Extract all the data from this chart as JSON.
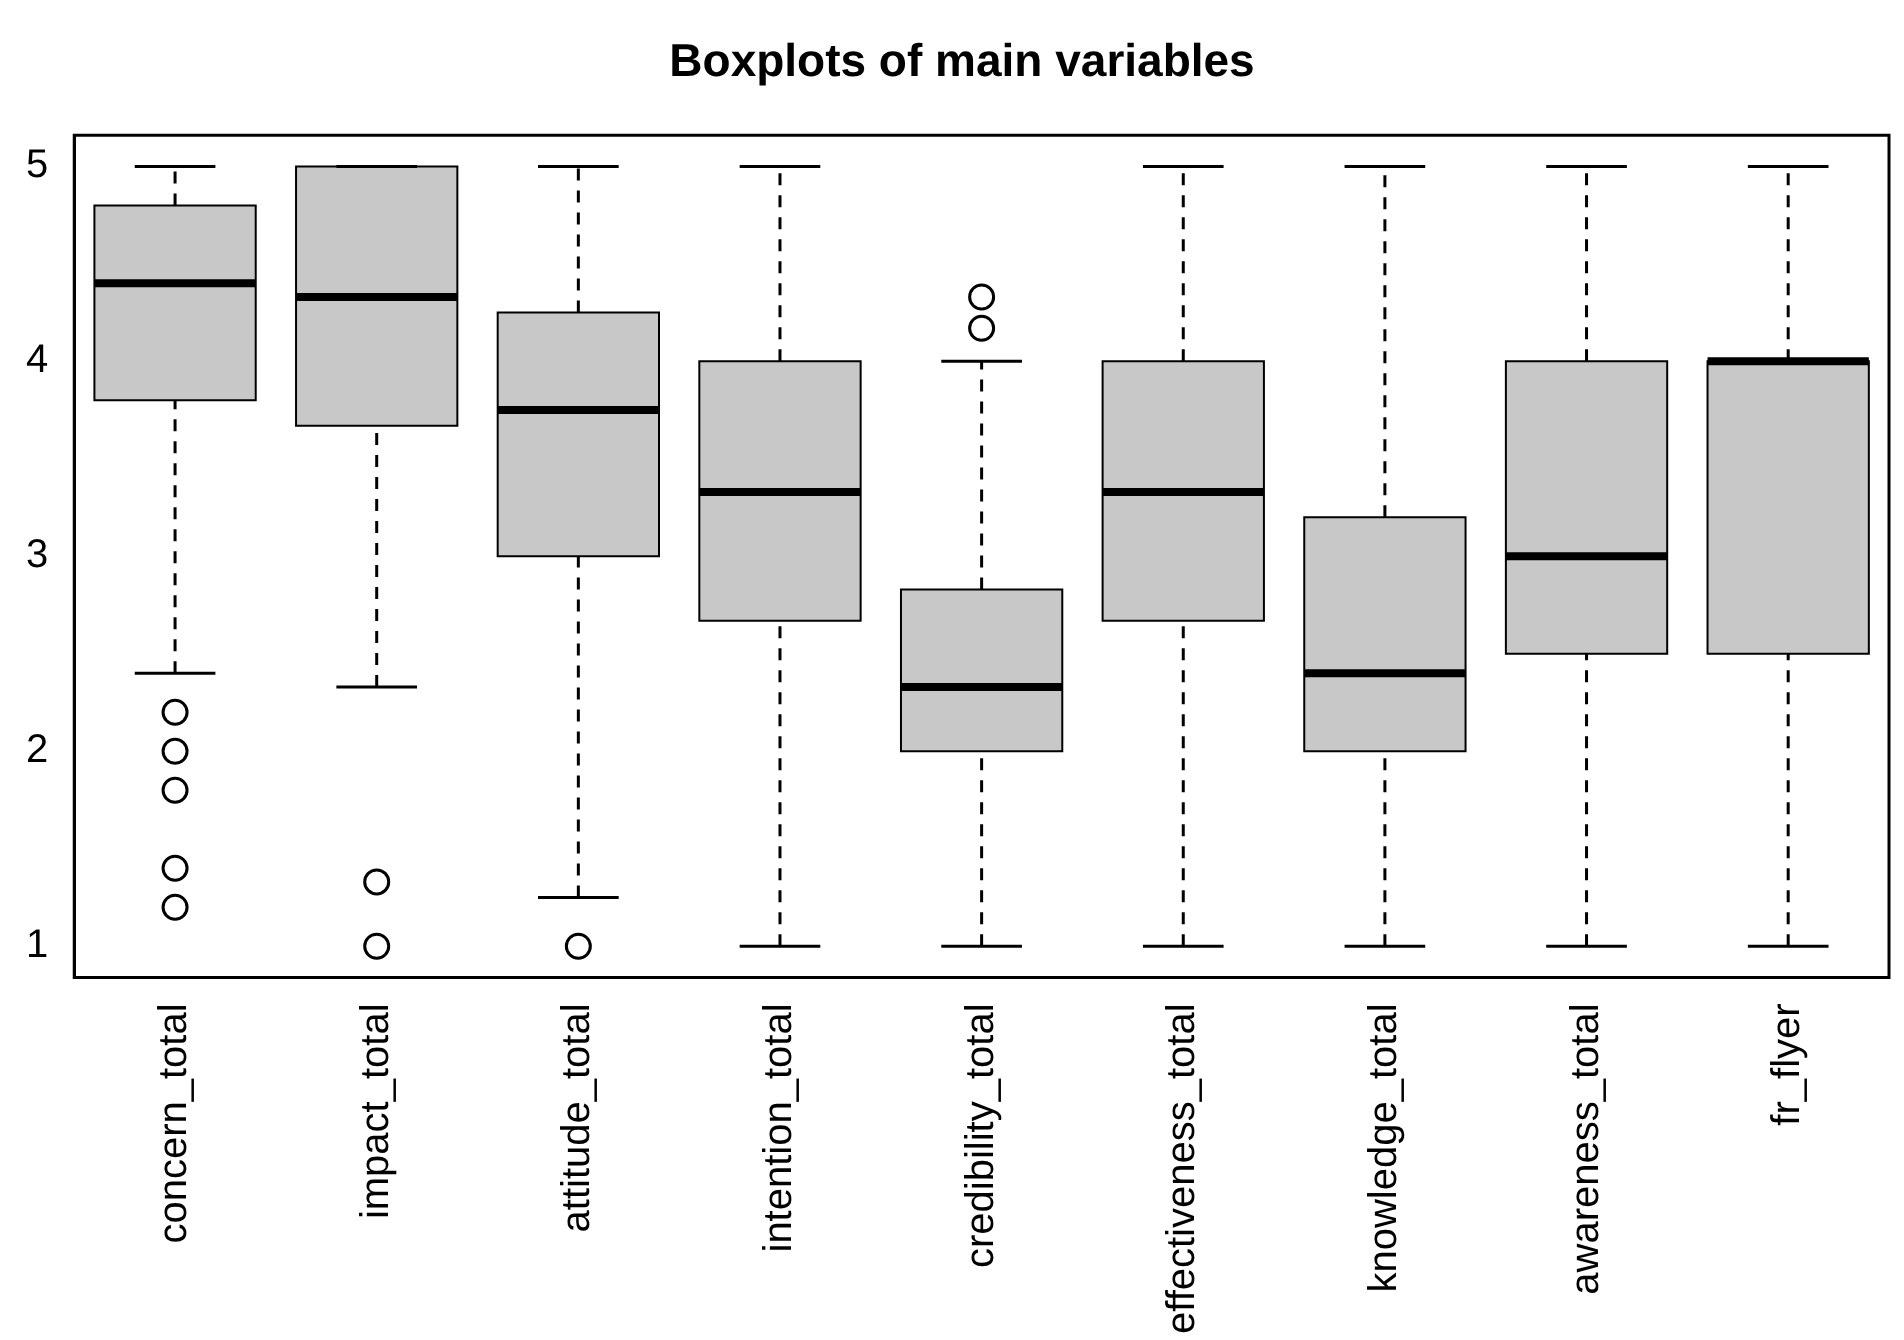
{
  "chart_data": {
    "type": "box",
    "title": "Boxplots of main variables",
    "categories": [
      "concern_total",
      "impact_total",
      "attitude_total",
      "intention_total",
      "credibility_total",
      "effectiveness_total",
      "knowledge_total",
      "awareness_total",
      "fr_flyer"
    ],
    "color": "#c8c8c8",
    "boxes": [
      {
        "low": 2.4,
        "q1": 3.8,
        "median": 4.4,
        "q3": 4.8,
        "high": 5,
        "outliers": [
          2.2,
          2.0,
          1.8,
          1.4,
          1.2
        ]
      },
      {
        "low": 2.33,
        "q1": 3.67,
        "median": 4.33,
        "q3": 5,
        "high": 5,
        "outliers": [
          1.33,
          1
        ]
      },
      {
        "low": 1.25,
        "q1": 3,
        "median": 3.75,
        "q3": 4.25,
        "high": 5,
        "outliers": [
          1
        ]
      },
      {
        "low": 1,
        "q1": 2.67,
        "median": 3.33,
        "q3": 4,
        "high": 5
      },
      {
        "low": 1,
        "q1": 2,
        "median": 2.33,
        "q3": 2.83,
        "high": 4,
        "outliers": [
          4.17,
          4.33
        ]
      },
      {
        "low": 1,
        "q1": 2.67,
        "median": 3.33,
        "q3": 4,
        "high": 5
      },
      {
        "low": 1,
        "q1": 2,
        "median": 2.4,
        "q3": 3.2,
        "high": 5
      },
      {
        "low": 1,
        "q1": 2.5,
        "median": 3,
        "q3": 4,
        "high": 5
      },
      {
        "low": 1,
        "q1": 2.5,
        "median": 4,
        "q3": 4,
        "high": 5
      }
    ],
    "ylim": [
      0.84,
      5.16
    ],
    "yticks": [
      1,
      2,
      3,
      4,
      5
    ],
    "grid": false
  }
}
